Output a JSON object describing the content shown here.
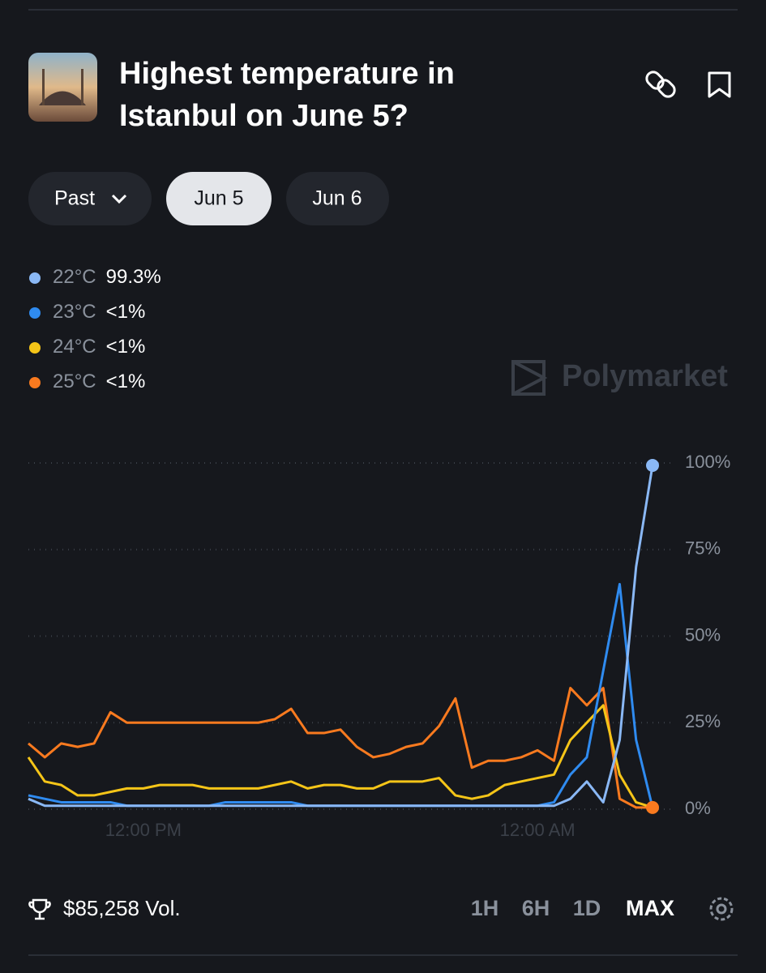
{
  "header": {
    "title_line1": "Highest temperature in",
    "title_line2": "Istanbul on June 5?"
  },
  "tabs": [
    "Past",
    "Jun 5",
    "Jun 6"
  ],
  "watermark": "Polymarket",
  "chart_data": {
    "type": "line",
    "categories": [
      null,
      null,
      null,
      null,
      null,
      null,
      null,
      "12:00 PM",
      null,
      null,
      null,
      null,
      null,
      null,
      null,
      null,
      null,
      null,
      null,
      null,
      null,
      null,
      null,
      null,
      null,
      null,
      null,
      null,
      null,
      null,
      null,
      "12:00 AM",
      null,
      null,
      null,
      null,
      null,
      null,
      null
    ],
    "series": [
      {
        "name": "22°C",
        "legend_value": "99.3%",
        "color": "#8ab8f5",
        "values": [
          3,
          1,
          1,
          1,
          1,
          1,
          1,
          1,
          1,
          1,
          1,
          1,
          1,
          1,
          1,
          1,
          1,
          1,
          1,
          1,
          1,
          1,
          1,
          1,
          1,
          1,
          1,
          1,
          1,
          1,
          1,
          1,
          1,
          3,
          8,
          2,
          20,
          70,
          99.3
        ]
      },
      {
        "name": "23°C",
        "legend_value": "<1%",
        "color": "#2f8bf0",
        "values": [
          4,
          3,
          2,
          2,
          2,
          2,
          1,
          1,
          1,
          1,
          1,
          1,
          2,
          2,
          2,
          2,
          2,
          1,
          1,
          1,
          1,
          1,
          1,
          1,
          1,
          1,
          1,
          1,
          1,
          1,
          1,
          1,
          2,
          10,
          15,
          40,
          65,
          20,
          0.5
        ]
      },
      {
        "name": "24°C",
        "legend_value": "<1%",
        "color": "#f5c518",
        "values": [
          15,
          8,
          7,
          4,
          4,
          5,
          6,
          6,
          7,
          7,
          7,
          6,
          6,
          6,
          6,
          7,
          8,
          6,
          7,
          7,
          6,
          6,
          8,
          8,
          8,
          9,
          4,
          3,
          4,
          7,
          8,
          9,
          10,
          20,
          25,
          30,
          10,
          2,
          0.5
        ]
      },
      {
        "name": "25°C",
        "legend_value": "<1%",
        "color": "#f97a1f",
        "values": [
          19,
          15,
          19,
          18,
          19,
          28,
          25,
          25,
          25,
          25,
          25,
          25,
          25,
          25,
          25,
          26,
          29,
          22,
          22,
          23,
          18,
          15,
          16,
          18,
          19,
          24,
          32,
          12,
          14,
          14,
          15,
          17,
          14,
          35,
          30,
          35,
          3,
          0.5,
          0.5
        ]
      }
    ],
    "ylim": [
      0,
      100
    ],
    "yticks": [
      {
        "value": 0,
        "label": "0%"
      },
      {
        "value": 25,
        "label": "25%"
      },
      {
        "value": 50,
        "label": "50%"
      },
      {
        "value": 75,
        "label": "75%"
      },
      {
        "value": 100,
        "label": "100%"
      }
    ],
    "grid": true
  },
  "footer": {
    "volume": "$85,258 Vol.",
    "ranges": [
      "1H",
      "6H",
      "1D",
      "MAX"
    ]
  }
}
